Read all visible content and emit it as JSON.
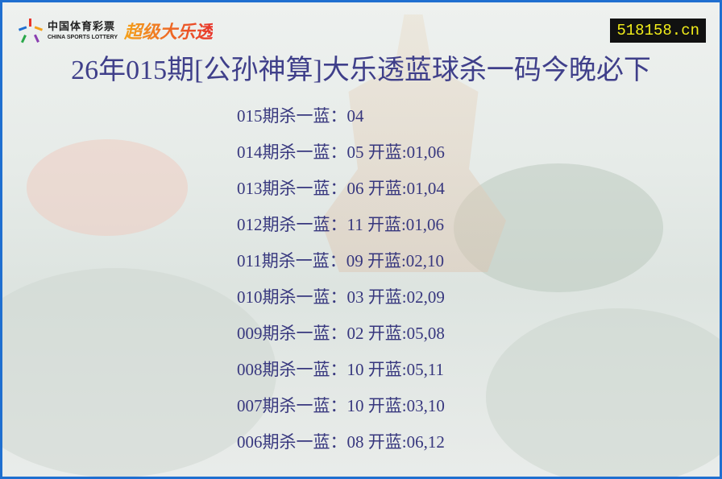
{
  "header": {
    "logo_cn": "中国体育彩票",
    "logo_en": "CHINA SPORTS LOTTERY",
    "brand": "超级大乐透",
    "site": "518158.cn"
  },
  "title": "26年015期[公孙神算]大乐透蓝球杀一码今晚必下",
  "rows": [
    "015期杀一蓝：04",
    "014期杀一蓝：05 开蓝:01,06",
    "013期杀一蓝：06 开蓝:01,04",
    "012期杀一蓝：11 开蓝:01,06",
    "011期杀一蓝：09 开蓝:02,10",
    "010期杀一蓝：03 开蓝:02,09",
    "009期杀一蓝：02 开蓝:05,08",
    "008期杀一蓝：10 开蓝:05,11",
    "007期杀一蓝：10 开蓝:03,10",
    "006期杀一蓝：08 开蓝:06,12"
  ],
  "colors": {
    "border": "#1f6fd0",
    "text": "#37377e",
    "site_bg": "#111111",
    "site_fg": "#f3ee1a"
  }
}
